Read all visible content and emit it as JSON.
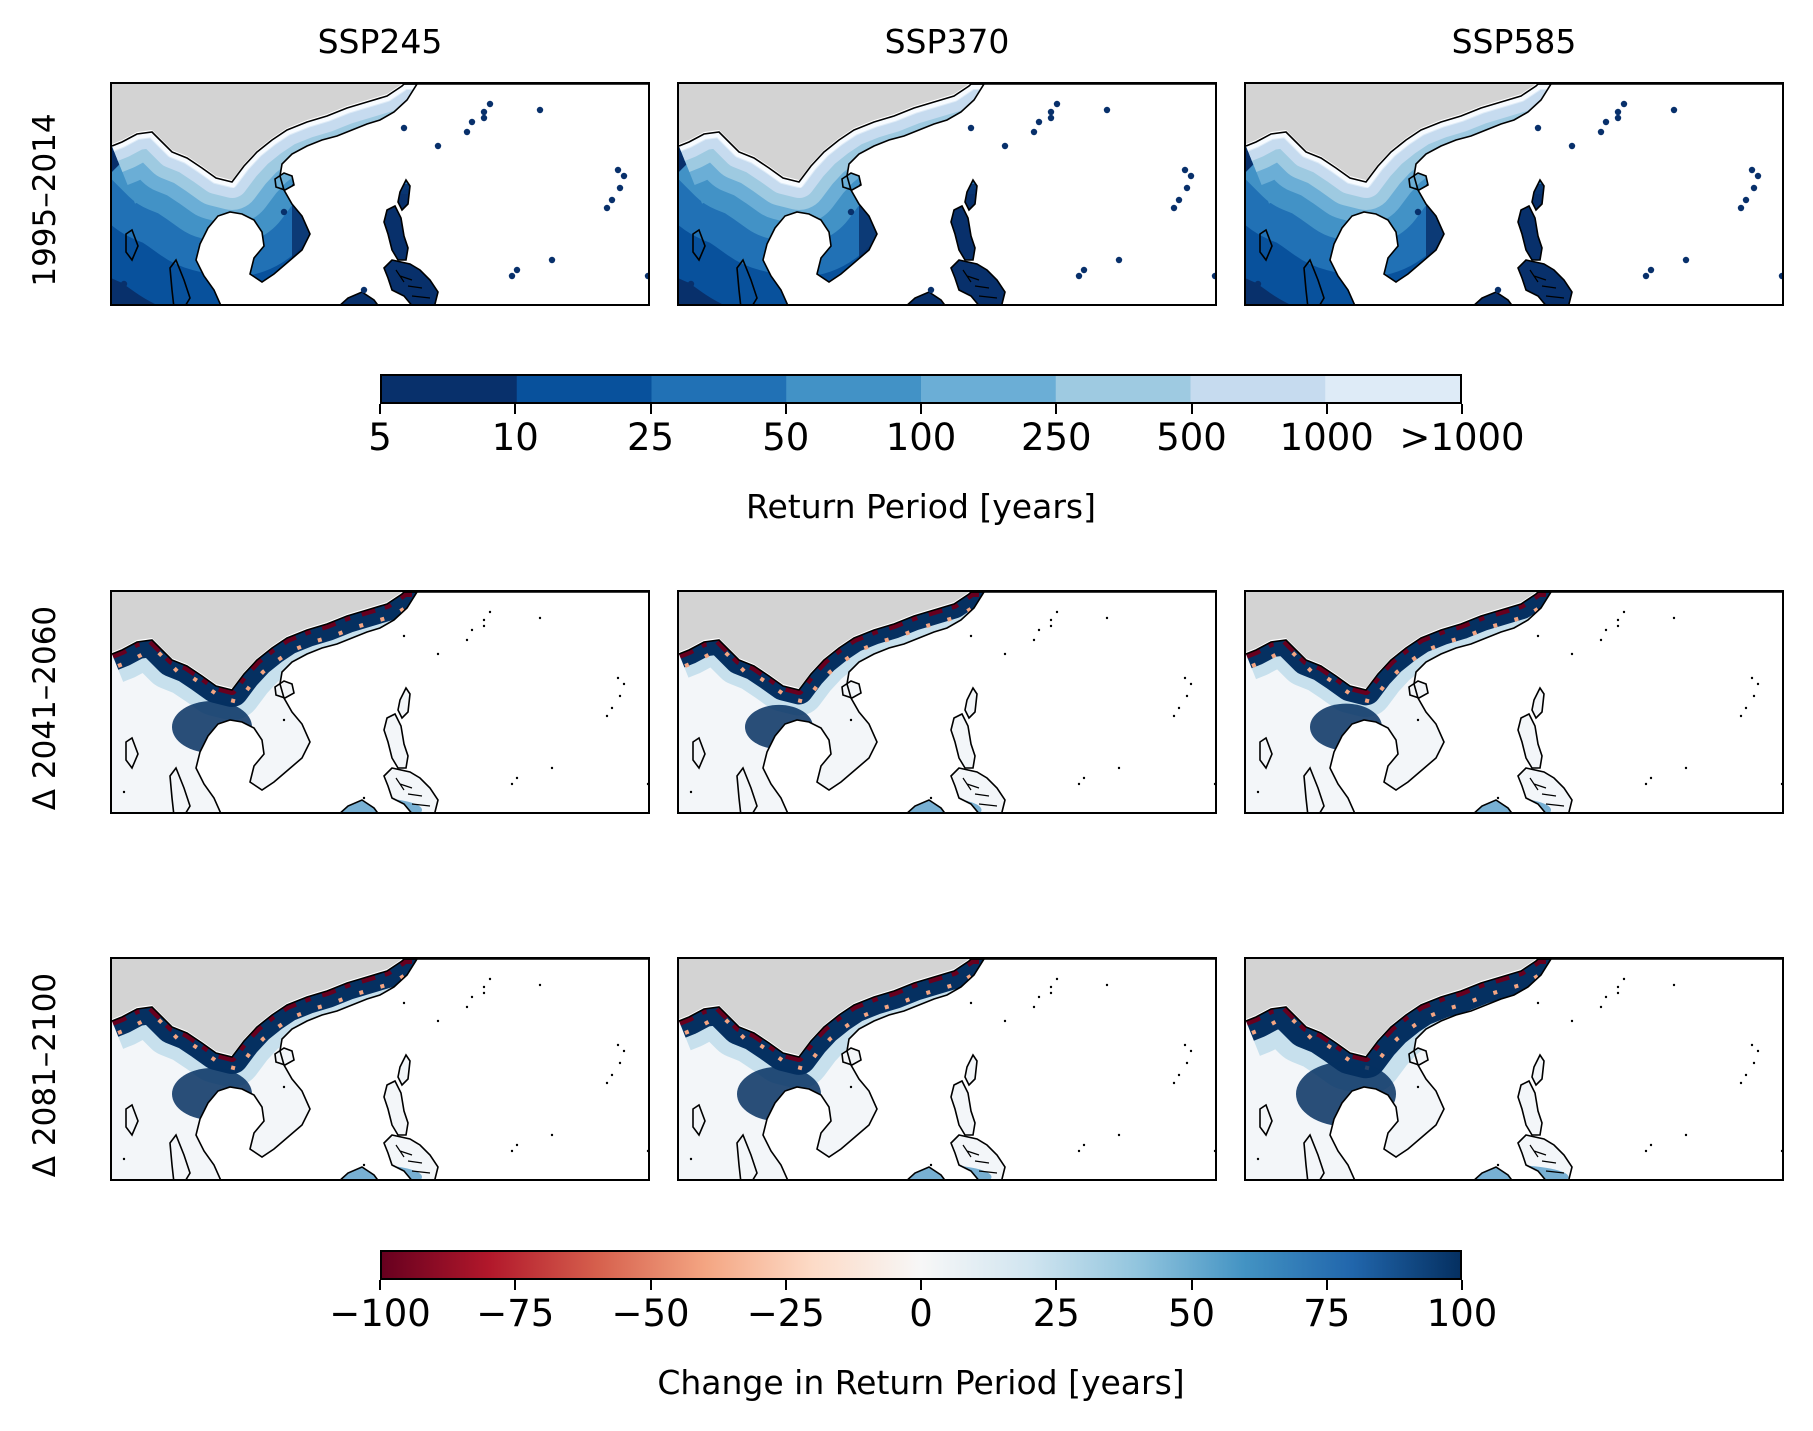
{
  "columns": [
    "SSP245",
    "SSP370",
    "SSP585"
  ],
  "rows": [
    "1995–2014",
    "Δ 2041–2060",
    "Δ 2081–2100"
  ],
  "panels": [
    {
      "row": 0,
      "col": 0,
      "type": "absolute",
      "scenario": "SSP245"
    },
    {
      "row": 0,
      "col": 1,
      "type": "absolute",
      "scenario": "SSP370"
    },
    {
      "row": 0,
      "col": 2,
      "type": "absolute",
      "scenario": "SSP585"
    },
    {
      "row": 1,
      "col": 0,
      "type": "change",
      "scenario": "SSP245",
      "intensity": 1.0
    },
    {
      "row": 1,
      "col": 1,
      "type": "change",
      "scenario": "SSP370",
      "intensity": 0.85
    },
    {
      "row": 1,
      "col": 2,
      "type": "change",
      "scenario": "SSP585",
      "intensity": 0.9
    },
    {
      "row": 2,
      "col": 0,
      "type": "change",
      "scenario": "SSP245",
      "intensity": 1.0
    },
    {
      "row": 2,
      "col": 1,
      "type": "change",
      "scenario": "SSP370",
      "intensity": 1.05
    },
    {
      "row": 2,
      "col": 2,
      "type": "change",
      "scenario": "SSP585",
      "intensity": 1.25
    }
  ],
  "colorbar_return": {
    "label": "Return Period [years]",
    "ticks": [
      "5",
      "10",
      "25",
      "50",
      "100",
      "250",
      "500",
      "1000",
      ">1000"
    ],
    "colors": [
      "#08306b",
      "#08519c",
      "#2171b5",
      "#4292c6",
      "#6baed6",
      "#9ecae1",
      "#c6dbef",
      "#deebf7"
    ]
  },
  "colorbar_change": {
    "label": "Change in Return Period [years]",
    "ticks": [
      "−100",
      "−75",
      "−50",
      "−25",
      "0",
      "25",
      "50",
      "75",
      "100"
    ],
    "colors": [
      "#67001f",
      "#b2182b",
      "#d6604d",
      "#f4a582",
      "#fddbc7",
      "#f7f7f7",
      "#d1e5f0",
      "#92c5de",
      "#4393c3",
      "#2166ac",
      "#053061"
    ]
  },
  "land_mask_color": "#d3d3d3"
}
